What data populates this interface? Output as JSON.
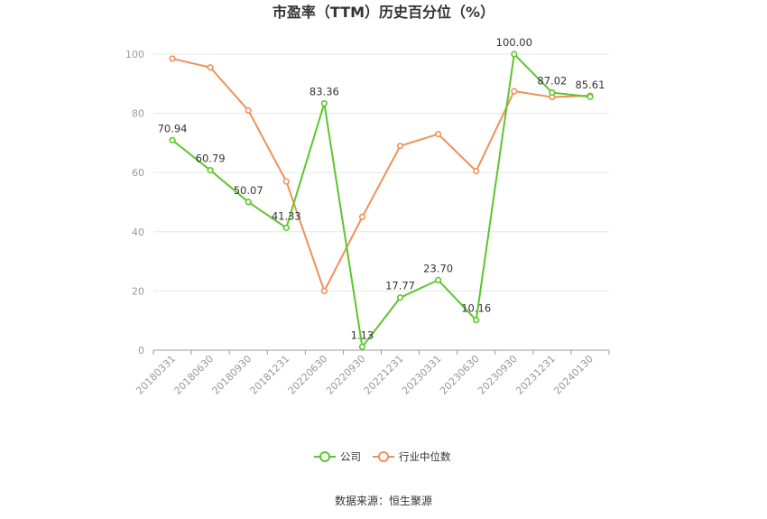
{
  "chart_data": {
    "type": "line",
    "title": "市盈率（TTM）历史百分位（%）",
    "categories": [
      "20180331",
      "20180630",
      "20180930",
      "20181231",
      "20220630",
      "20220930",
      "20221231",
      "20230331",
      "20230630",
      "20230930",
      "20231231",
      "20240130"
    ],
    "series": [
      {
        "name": "公司",
        "color": "#5cc62c",
        "values": [
          70.94,
          60.79,
          50.07,
          41.33,
          83.36,
          1.13,
          17.77,
          23.7,
          10.16,
          100.0,
          87.02,
          85.61
        ],
        "labels": [
          "70.94",
          "60.79",
          "50.07",
          "41.33",
          "83.36",
          "1.13",
          "17.77",
          "23.70",
          "10.16",
          "100.00",
          "87.02",
          "85.61"
        ]
      },
      {
        "name": "行业中位数",
        "color": "#f0905a",
        "values": [
          98.5,
          95.5,
          81,
          57,
          20,
          45,
          69,
          73,
          60.5,
          87.5,
          85.5,
          86
        ]
      }
    ],
    "ylim": [
      0,
      100
    ],
    "yticks": [
      "0",
      "20",
      "40",
      "60",
      "80",
      "100"
    ],
    "grid": true,
    "legend_position": "bottom"
  },
  "source": "数据来源：恒生聚源"
}
